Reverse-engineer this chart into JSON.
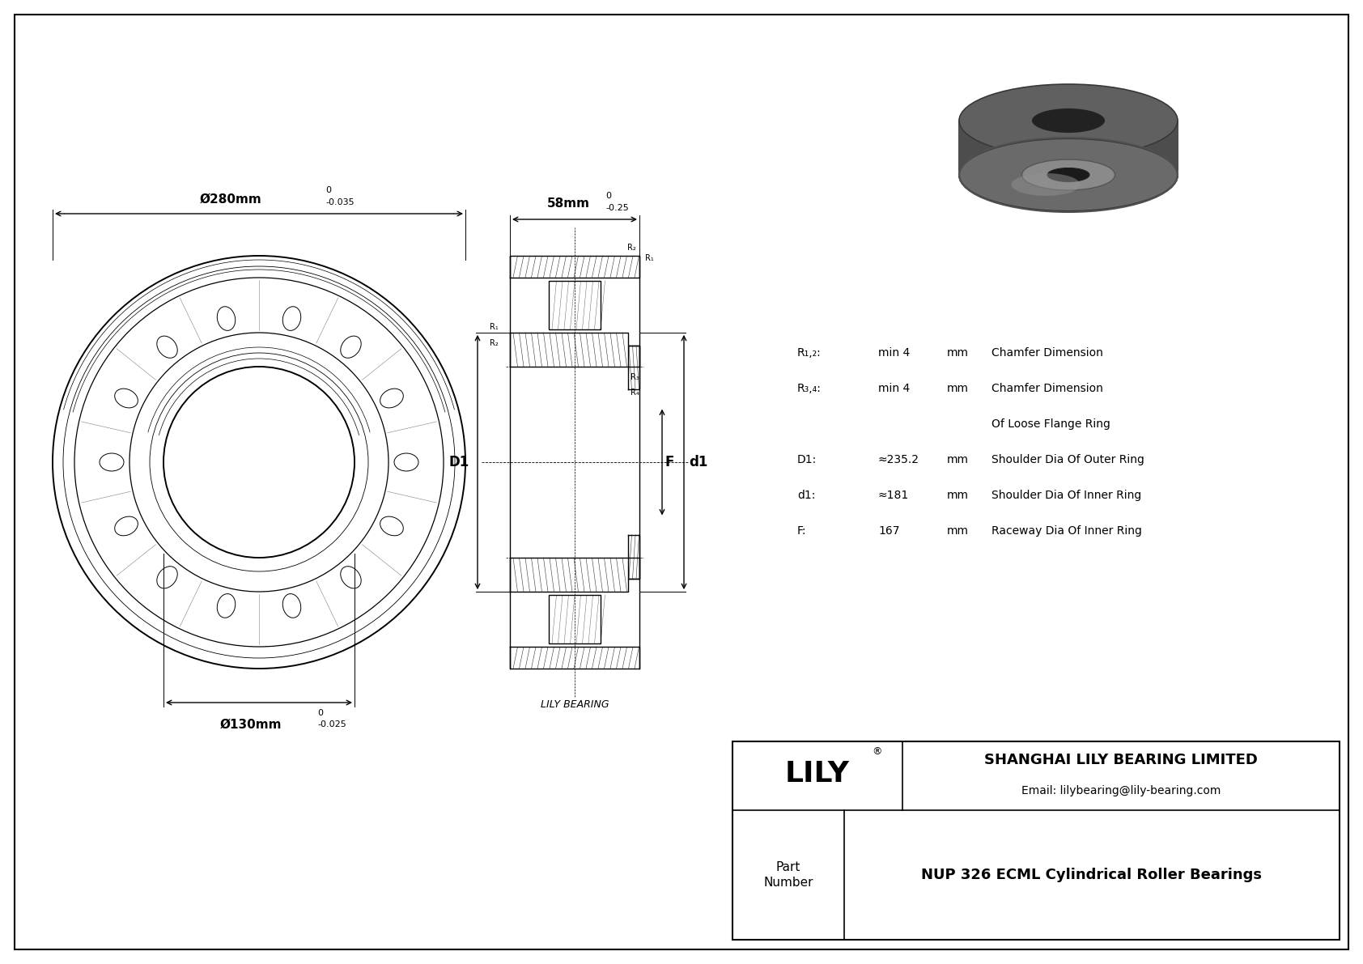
{
  "bg_color": "#ffffff",
  "border_color": "#000000",
  "outer_dia_label": "Ø280mm",
  "outer_dia_tol_top": "0",
  "outer_dia_tol_bot": "-0.035",
  "inner_dia_label": "Ø130mm",
  "inner_dia_tol_top": "0",
  "inner_dia_tol_bot": "-0.025",
  "width_label": "58mm",
  "width_tol_top": "0",
  "width_tol_bot": "-0.25",
  "params": [
    {
      "symbol": "R₁,₂:",
      "value": "min 4",
      "unit": "mm",
      "desc": "Chamfer Dimension"
    },
    {
      "symbol": "R₃,₄:",
      "value": "min 4",
      "unit": "mm",
      "desc": "Chamfer Dimension"
    },
    {
      "symbol": "",
      "value": "",
      "unit": "",
      "desc": "Of Loose Flange Ring"
    },
    {
      "symbol": "D1:",
      "value": "≈235.2",
      "unit": "mm",
      "desc": "Shoulder Dia Of Outer Ring"
    },
    {
      "symbol": "d1:",
      "value": "≈181",
      "unit": "mm",
      "desc": "Shoulder Dia Of Inner Ring"
    },
    {
      "symbol": "F:",
      "value": "167",
      "unit": "mm",
      "desc": "Raceway Dia Of Inner Ring"
    }
  ],
  "company": "SHANGHAI LILY BEARING LIMITED",
  "email": "Email: lilybearing@lily-bearing.com",
  "part_number": "NUP 326 ECML Cylindrical Roller Bearings",
  "sub_label": "LILY BEARING",
  "font_color": "#000000",
  "line_color": "#000000"
}
